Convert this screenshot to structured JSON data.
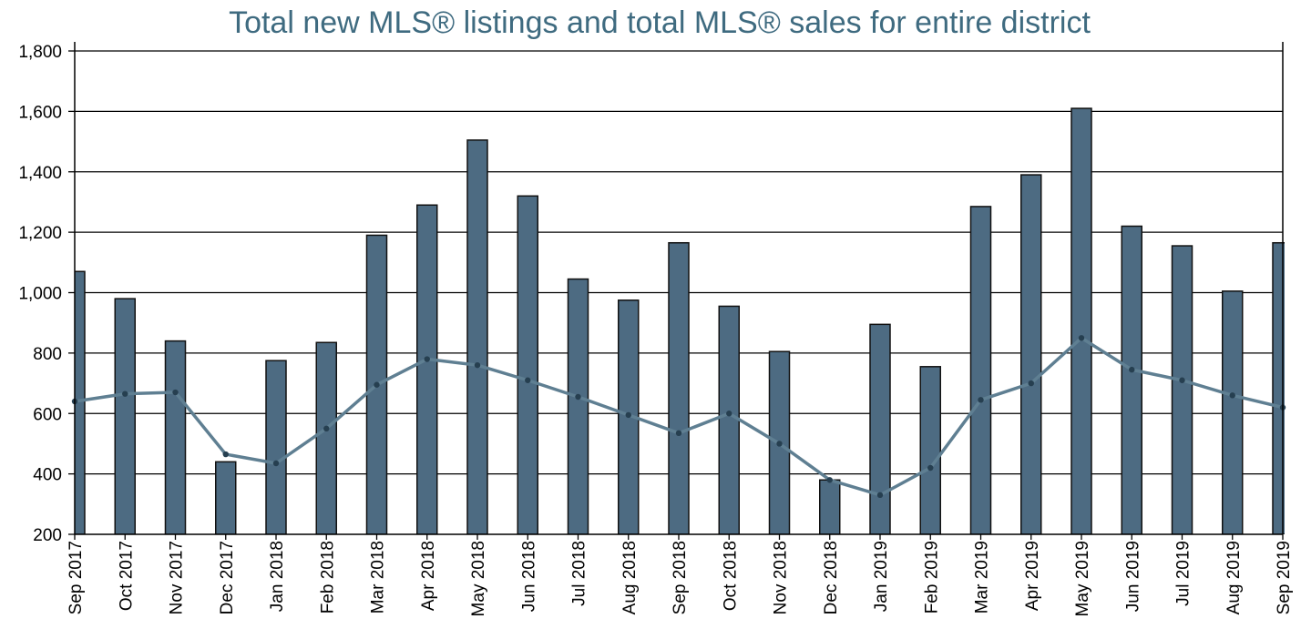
{
  "chart_data": {
    "type": "bar",
    "title": "Total new MLS® listings and total MLS® sales for entire district",
    "xlabel": "",
    "ylabel": "",
    "ylim": [
      200,
      1800
    ],
    "yticks": [
      "200",
      "400",
      "600",
      "800",
      "1,000",
      "1,200",
      "1,400",
      "1,600",
      "1,800"
    ],
    "ytick_values": [
      200,
      400,
      600,
      800,
      1000,
      1200,
      1400,
      1600,
      1800
    ],
    "grid": true,
    "categories": [
      "Sep 2017",
      "Oct 2017",
      "Nov 2017",
      "Dec 2017",
      "Jan 2018",
      "Feb 2018",
      "Mar 2018",
      "Apr 2018",
      "May 2018",
      "Jun 2018",
      "Jul 2018",
      "Aug 2018",
      "Sep 2018",
      "Oct 2018",
      "Nov 2018",
      "Dec 2018",
      "Jan 2019",
      "Feb 2019",
      "Mar 2019",
      "Apr 2019",
      "May 2019",
      "Jun 2019",
      "Jul 2019",
      "Aug 2019",
      "Sep 2019"
    ],
    "series": [
      {
        "name": "Total new MLS® listings",
        "kind": "bar",
        "color": "#4d6b82",
        "values": [
          1070,
          980,
          840,
          440,
          775,
          835,
          1190,
          1290,
          1505,
          1320,
          1045,
          975,
          1165,
          955,
          805,
          380,
          895,
          755,
          1285,
          1390,
          1610,
          1220,
          1155,
          1005,
          1165
        ]
      },
      {
        "name": "Total MLS® sales",
        "kind": "line",
        "color": "#5f7f92",
        "values": [
          640,
          665,
          670,
          465,
          435,
          550,
          695,
          780,
          760,
          710,
          655,
          595,
          535,
          600,
          500,
          380,
          330,
          420,
          645,
          700,
          850,
          745,
          710,
          660,
          620
        ]
      }
    ]
  }
}
